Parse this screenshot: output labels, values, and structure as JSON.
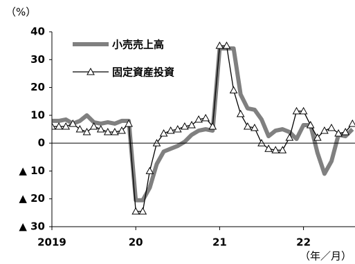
{
  "chart_data": {
    "type": "line",
    "y_label": "（%）",
    "x_label": "（年／月）",
    "categories": [
      "2019",
      null,
      null,
      null,
      null,
      null,
      null,
      null,
      null,
      null,
      null,
      null,
      "20",
      null,
      null,
      null,
      null,
      null,
      null,
      null,
      null,
      null,
      null,
      null,
      "21",
      null,
      null,
      null,
      null,
      null,
      null,
      null,
      null,
      null,
      null,
      null,
      "22",
      null,
      null,
      null,
      null,
      null,
      null,
      null
    ],
    "series": [
      {
        "name": "小売売上高",
        "color": "#808080",
        "marker": "none",
        "values": [
          8,
          8,
          8.5,
          7,
          8,
          10,
          7.5,
          7,
          7.5,
          7,
          8,
          8,
          -20.5,
          -20.5,
          -16,
          -7.5,
          -3,
          -2,
          -1,
          0.5,
          3,
          4.5,
          5,
          4.5,
          34,
          34,
          34,
          17.5,
          12.5,
          12,
          8.5,
          2.5,
          4.5,
          5,
          4,
          1.5,
          6.5,
          6.5,
          -3.5,
          -11,
          -6.5,
          3,
          2.5,
          5
        ]
      },
      {
        "name": "固定資産投資",
        "color": "#000000",
        "marker": "triangle",
        "values": [
          6,
          6,
          6,
          7,
          5,
          4,
          6,
          5,
          4,
          4,
          4.5,
          7,
          -24.5,
          -24.5,
          -10,
          0,
          3.5,
          4.5,
          5,
          6,
          6.5,
          8.5,
          9,
          6,
          35,
          35,
          19,
          10.5,
          6,
          5.5,
          0,
          -2,
          -2.5,
          -2.5,
          2,
          11.5,
          11.5,
          6.5,
          2,
          4.5,
          5.5,
          3.5,
          4,
          7
        ]
      }
    ],
    "ylim": [
      -30,
      40
    ],
    "yticks": [
      40,
      30,
      20,
      10,
      0,
      {
        "value": -10,
        "label": "▲ 10"
      },
      {
        "value": -20,
        "label": "▲ 20"
      },
      {
        "value": -30,
        "label": "▲ 30"
      }
    ],
    "legend": "upper left",
    "grid": false
  }
}
